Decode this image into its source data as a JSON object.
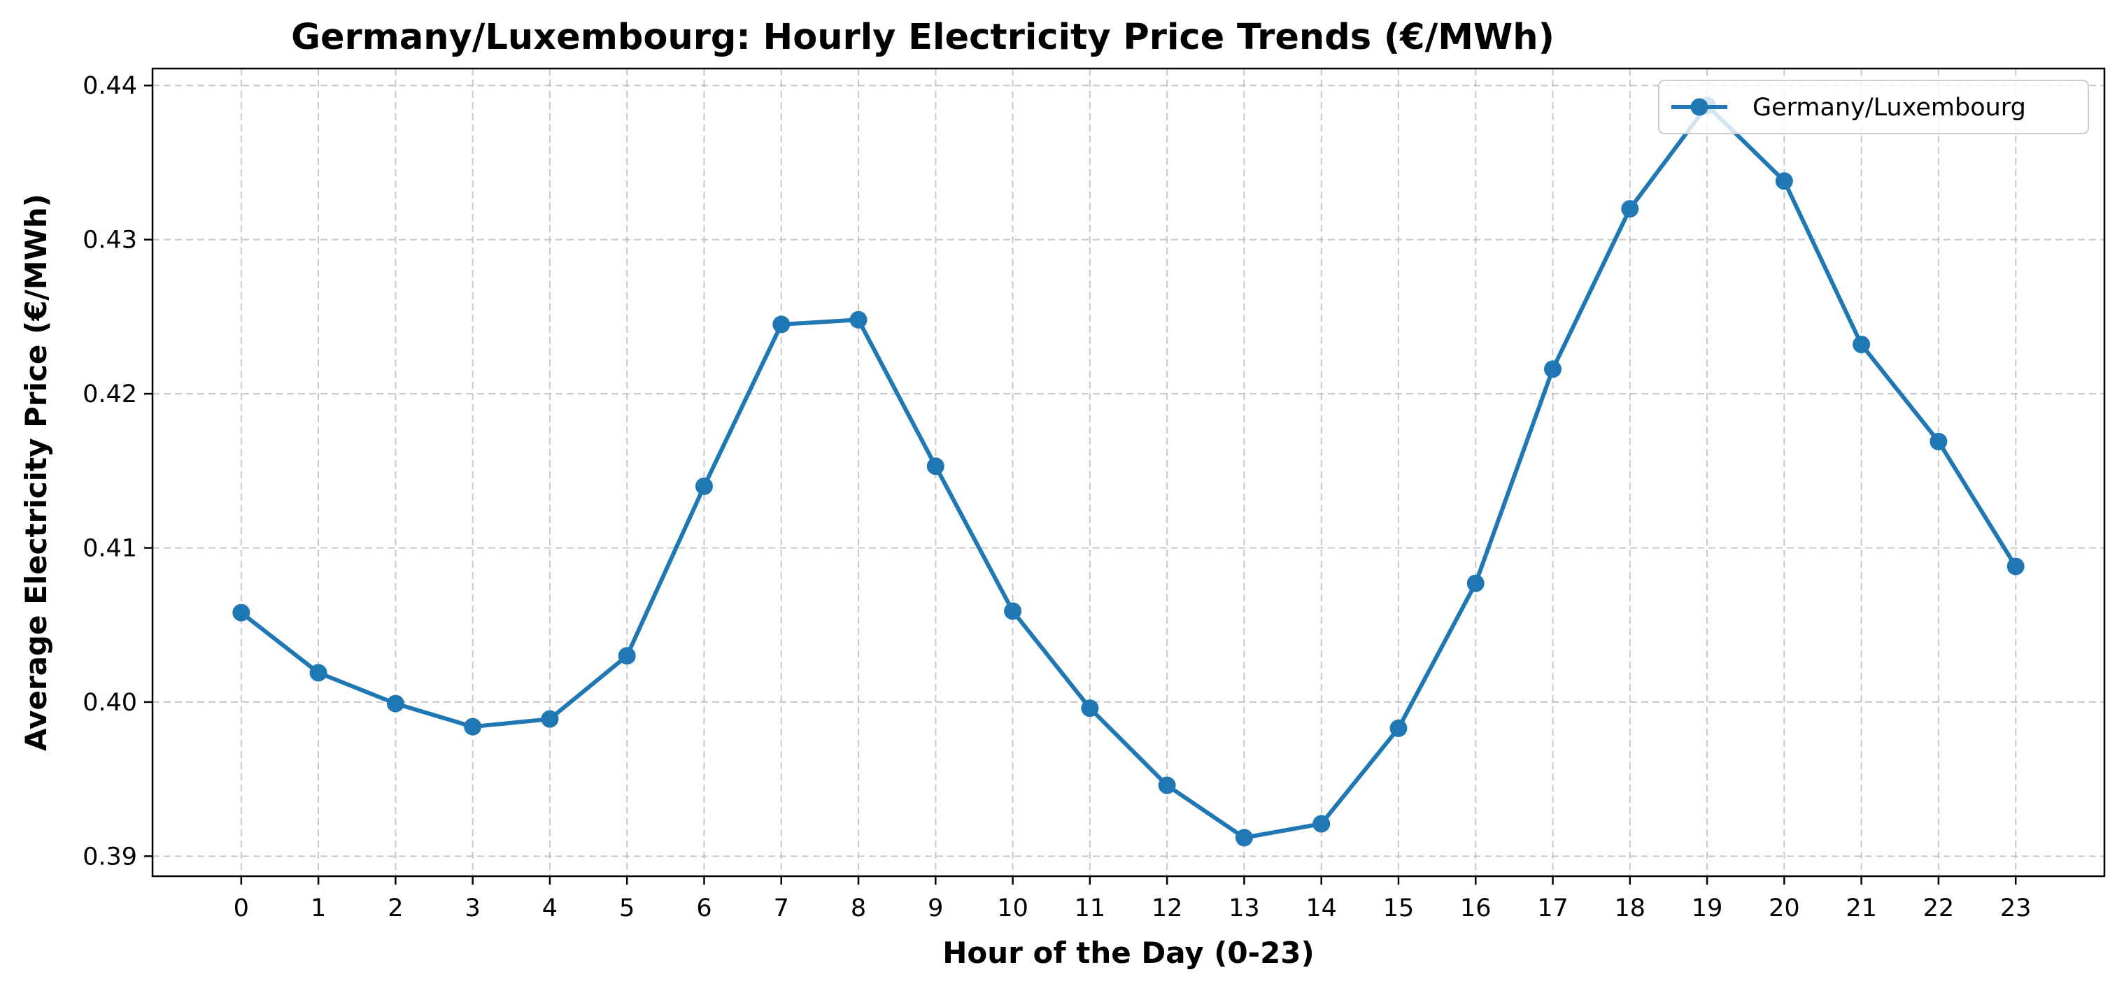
{
  "chart_data": {
    "type": "line",
    "title": "Germany/Luxembourg: Hourly Electricity Price Trends (€/MWh)",
    "xlabel": "Hour of the Day (0-23)",
    "ylabel": "Average Electricity Price (€/MWh)",
    "x": [
      0,
      1,
      2,
      3,
      4,
      5,
      6,
      7,
      8,
      9,
      10,
      11,
      12,
      13,
      14,
      15,
      16,
      17,
      18,
      19,
      20,
      21,
      22,
      23
    ],
    "xticks": [
      "0",
      "1",
      "2",
      "3",
      "4",
      "5",
      "6",
      "7",
      "8",
      "9",
      "10",
      "11",
      "12",
      "13",
      "14",
      "15",
      "16",
      "17",
      "18",
      "19",
      "20",
      "21",
      "22",
      "23"
    ],
    "yticks": [
      "0.39",
      "0.40",
      "0.41",
      "0.42",
      "0.43",
      "0.44"
    ],
    "ylim": [
      0.3887,
      0.4411
    ],
    "xlim": [
      -1.15,
      24.15
    ],
    "grid": true,
    "legend_position": "top-right",
    "series": [
      {
        "name": "Germany/Luxembourg",
        "color": "#1f77b4",
        "marker": "circle",
        "values": [
          0.4058,
          0.4019,
          0.3999,
          0.3984,
          0.3989,
          0.403,
          0.414,
          0.4245,
          0.4248,
          0.4153,
          0.4059,
          0.3996,
          0.3946,
          0.3912,
          0.3921,
          0.3983,
          0.4077,
          0.4216,
          0.432,
          0.4387,
          0.4338,
          0.4232,
          0.4169,
          0.4088
        ]
      }
    ]
  }
}
